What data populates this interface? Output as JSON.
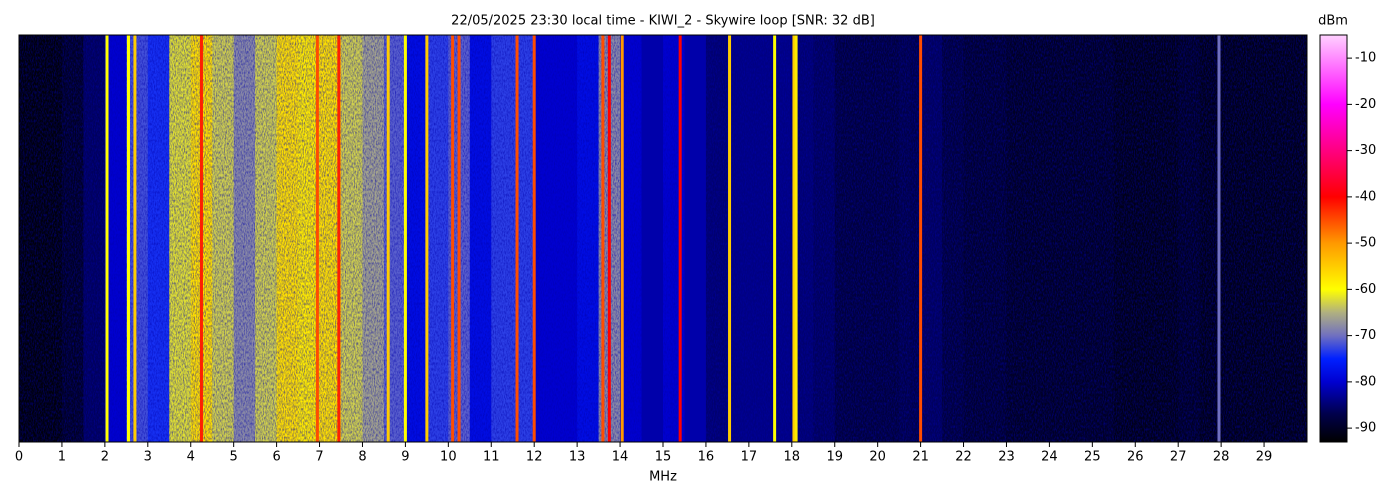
{
  "chart_data": {
    "type": "heatmap",
    "title": "22/05/2025 23:30 local time - KIWI_2 - Skywire loop [SNR: 32 dB]",
    "xlabel": "MHz",
    "colorbar_label": "dBm",
    "xlim": [
      0,
      30
    ],
    "xticks": [
      0,
      1,
      2,
      3,
      4,
      5,
      6,
      7,
      8,
      9,
      10,
      11,
      12,
      13,
      14,
      15,
      16,
      17,
      18,
      19,
      20,
      21,
      22,
      23,
      24,
      25,
      26,
      27,
      28,
      29
    ],
    "clim": [
      -93,
      -5
    ],
    "cticks": [
      -90,
      -80,
      -70,
      -60,
      -50,
      -40,
      -30,
      -20,
      -10
    ],
    "colormap": [
      {
        "value": -93,
        "color": "#000000"
      },
      {
        "value": -87,
        "color": "#00004a"
      },
      {
        "value": -80,
        "color": "#0000d0"
      },
      {
        "value": -75,
        "color": "#0020ff"
      },
      {
        "value": -70,
        "color": "#7070c0"
      },
      {
        "value": -65,
        "color": "#b0b080"
      },
      {
        "value": -60,
        "color": "#ffff00"
      },
      {
        "value": -50,
        "color": "#ff9900"
      },
      {
        "value": -40,
        "color": "#ff0000"
      },
      {
        "value": -30,
        "color": "#ff0080"
      },
      {
        "value": -20,
        "color": "#ff00ff"
      },
      {
        "value": -5,
        "color": "#ffd0ff"
      }
    ],
    "x": [
      0.25,
      0.75,
      1.25,
      1.75,
      2.25,
      2.75,
      3.25,
      3.75,
      4.25,
      4.75,
      5.25,
      5.75,
      6.25,
      6.75,
      7.25,
      7.75,
      8.25,
      8.75,
      9.25,
      9.75,
      10.25,
      10.75,
      11.25,
      11.75,
      12.25,
      12.75,
      13.25,
      13.75,
      14.25,
      14.75,
      15.25,
      15.75,
      16.25,
      16.75,
      17.25,
      17.75,
      18.25,
      18.75,
      19.25,
      19.75,
      20.25,
      20.75,
      21.25,
      21.75,
      22.25,
      22.75,
      23.25,
      23.75,
      24.25,
      24.75,
      25.25,
      25.75,
      26.25,
      26.75,
      27.25,
      27.75,
      28.25,
      28.75,
      29.25,
      29.75
    ],
    "values": [
      -92,
      -92,
      -90,
      -86,
      -80,
      -72,
      -74,
      -62,
      -57,
      -63,
      -68,
      -63,
      -57,
      -58,
      -57,
      -63,
      -66,
      -71,
      -78,
      -73,
      -71,
      -78,
      -73,
      -73,
      -80,
      -80,
      -78,
      -68,
      -80,
      -82,
      -80,
      -82,
      -85,
      -84,
      -84,
      -84,
      -85,
      -86,
      -88,
      -88,
      -88,
      -87,
      -86,
      -88,
      -89,
      -89,
      -90,
      -90,
      -90,
      -90,
      -90,
      -91,
      -91,
      -91,
      -90,
      -91,
      -91,
      -91,
      -91,
      -91
    ],
    "signals": {
      "freqs": [
        2.05,
        2.55,
        2.7,
        4.25,
        6.95,
        7.45,
        8.6,
        9.0,
        9.5,
        10.1,
        10.25,
        11.6,
        12.0,
        13.6,
        13.75,
        14.05,
        15.4,
        16.55,
        17.6,
        18.05,
        18.1,
        21.0,
        27.95
      ],
      "levels": [
        -60,
        -60,
        -55,
        -42,
        -45,
        -42,
        -55,
        -60,
        -55,
        -45,
        -45,
        -45,
        -45,
        -45,
        -40,
        -50,
        -40,
        -55,
        -60,
        -55,
        -58,
        -45,
        -70
      ]
    }
  }
}
